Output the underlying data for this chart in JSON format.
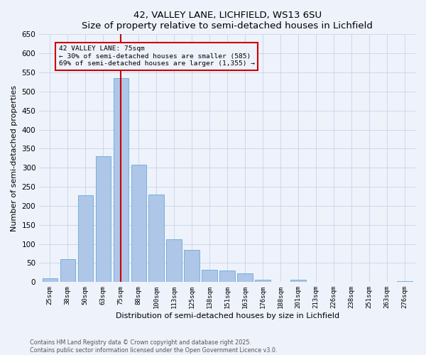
{
  "title": "42, VALLEY LANE, LICHFIELD, WS13 6SU",
  "subtitle": "Size of property relative to semi-detached houses in Lichfield",
  "xlabel": "Distribution of semi-detached houses by size in Lichfield",
  "ylabel": "Number of semi-detached properties",
  "categories": [
    "25sqm",
    "38sqm",
    "50sqm",
    "63sqm",
    "75sqm",
    "88sqm",
    "100sqm",
    "113sqm",
    "125sqm",
    "138sqm",
    "151sqm",
    "163sqm",
    "176sqm",
    "188sqm",
    "201sqm",
    "213sqm",
    "226sqm",
    "238sqm",
    "251sqm",
    "263sqm",
    "276sqm"
  ],
  "values": [
    10,
    60,
    228,
    330,
    535,
    308,
    230,
    113,
    85,
    33,
    30,
    23,
    7,
    0,
    6,
    0,
    0,
    0,
    0,
    0,
    3
  ],
  "bar_color": "#aec6e8",
  "bar_edge_color": "#6aaad4",
  "highlight_index": 4,
  "highlight_color": "#cc0000",
  "annotation_title": "42 VALLEY LANE: 75sqm",
  "annotation_line1": "← 30% of semi-detached houses are smaller (585)",
  "annotation_line2": "69% of semi-detached houses are larger (1,355) →",
  "annotation_box_color": "#cc0000",
  "ylim": [
    0,
    650
  ],
  "yticks": [
    0,
    50,
    100,
    150,
    200,
    250,
    300,
    350,
    400,
    450,
    500,
    550,
    600,
    650
  ],
  "footer_line1": "Contains HM Land Registry data © Crown copyright and database right 2025.",
  "footer_line2": "Contains public sector information licensed under the Open Government Licence v3.0.",
  "bg_color": "#eef2fb",
  "grid_color": "#c8d4e8"
}
